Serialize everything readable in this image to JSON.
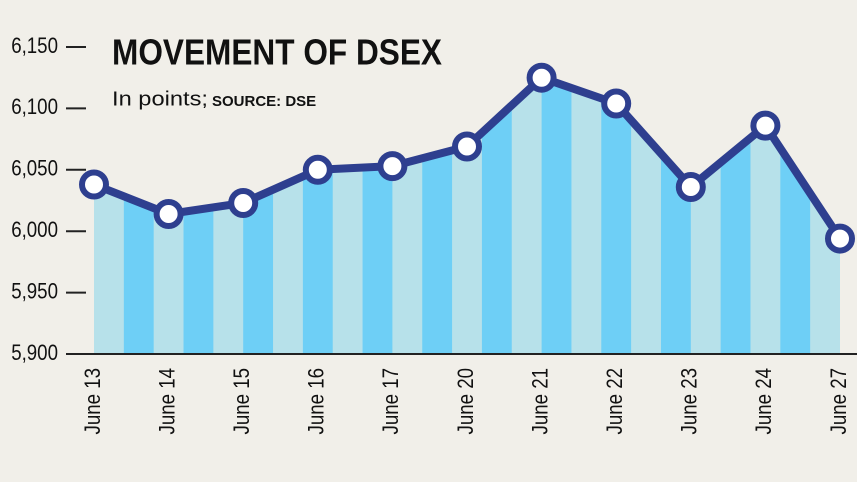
{
  "chart_data": {
    "type": "line",
    "title": "MOVEMENT OF DSEX",
    "subtitle": "In points;",
    "source": "SOURCE: DSE",
    "categories": [
      "June 13",
      "June 14",
      "June 15",
      "June 16",
      "June 17",
      "June 20",
      "June 21",
      "June 22",
      "June 23",
      "June 24",
      "June 27"
    ],
    "values": [
      6038,
      6014,
      6023,
      6050,
      6053,
      6069,
      6125,
      6104,
      6036,
      6086,
      5994
    ],
    "color": "#2e3f8f",
    "fill_colors": [
      "#b7e1ea",
      "#6ecff6"
    ],
    "ylim": [
      5900,
      6150
    ],
    "yticks": [
      {
        "value": 5900,
        "label": "5,900"
      },
      {
        "value": 5950,
        "label": "5,950"
      },
      {
        "value": 6000,
        "label": "6,000"
      },
      {
        "value": 6050,
        "label": "6,050"
      },
      {
        "value": 6100,
        "label": "6,100"
      },
      {
        "value": 6150,
        "label": "6,150"
      }
    ]
  }
}
